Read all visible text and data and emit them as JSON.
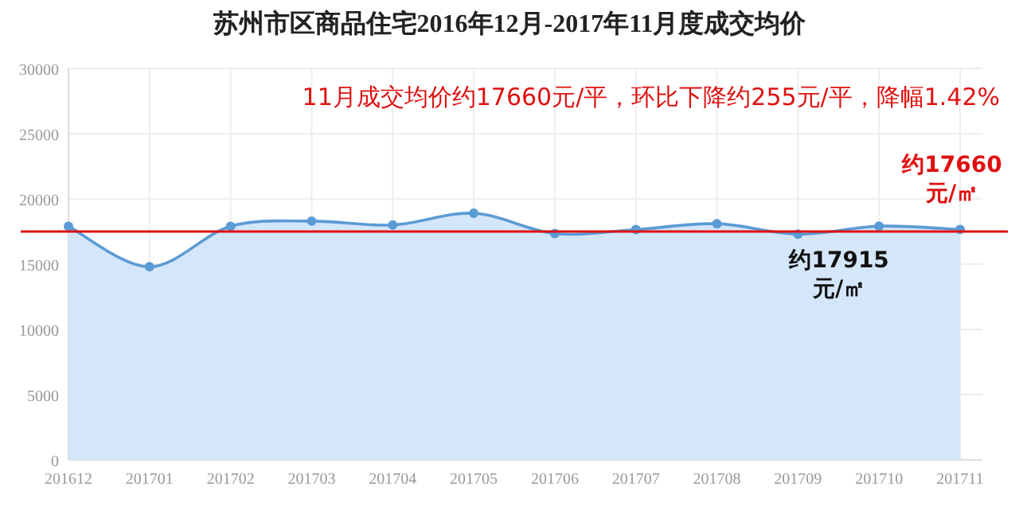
{
  "chart_data": {
    "type": "area",
    "title": "苏州市区商品住宅2016年12月-2017年11月度成交均价",
    "subtitle": "11月成交均价约17660元/平，环比下降约255元/平，降幅1.42%",
    "categories": [
      "201612",
      "201701",
      "201702",
      "201703",
      "201704",
      "201705",
      "201706",
      "201707",
      "201708",
      "201709",
      "201710",
      "201711"
    ],
    "series": [
      {
        "color": "#5b9bd5",
        "values": [
          17900,
          14800,
          17900,
          18300,
          18000,
          18900,
          17350,
          17650,
          18100,
          17300,
          17915,
          17660
        ]
      }
    ],
    "ylim": [
      0,
      30000
    ],
    "yticks": [
      0,
      5000,
      10000,
      15000,
      20000,
      25000,
      30000
    ],
    "grid": true,
    "marker": "circle",
    "line_style": "solid",
    "ref_lines": [
      {
        "axis": "y",
        "value": 17500,
        "color": "#e01010"
      }
    ],
    "annotations": [
      {
        "text": "约17660\n元/㎡",
        "x": "201711",
        "y": 17660
      },
      {
        "text": "约17915\n元/㎡",
        "x": "201710",
        "y": 17915
      }
    ]
  }
}
